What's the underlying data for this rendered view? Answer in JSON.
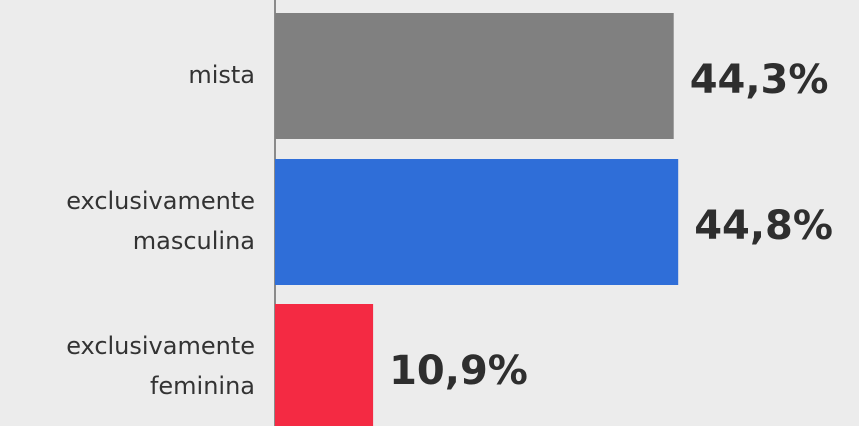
{
  "chart_data": {
    "type": "bar",
    "orientation": "horizontal",
    "categories": [
      [
        "mista"
      ],
      [
        "exclusivamente",
        "masculina"
      ],
      [
        "exclusivamente",
        "feminina"
      ]
    ],
    "values": [
      44.3,
      44.8,
      10.9
    ],
    "value_labels": [
      "44,3%",
      "44,8%",
      "10,9%"
    ],
    "colors": [
      "#808080",
      "#2f6ed8",
      "#f42a43"
    ],
    "xlim": [
      0,
      60
    ]
  }
}
